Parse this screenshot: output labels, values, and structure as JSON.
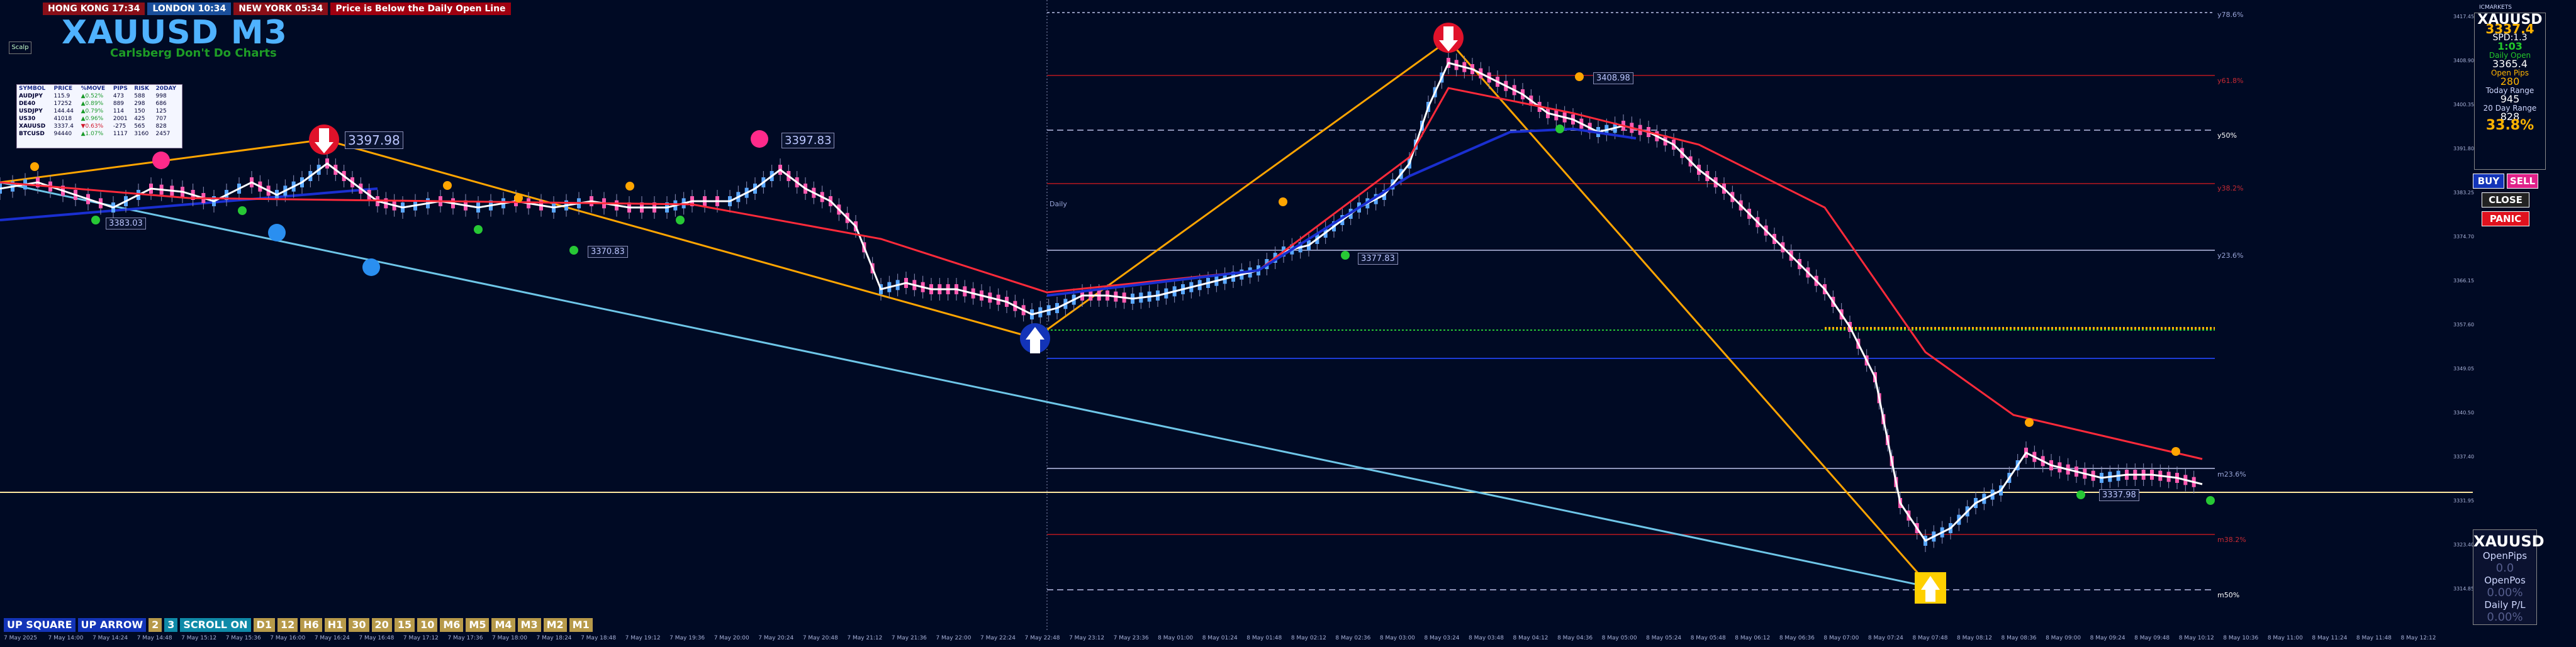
{
  "sessions": {
    "hong_kong": "HONG KONG 17:34",
    "london": "LONDON 10:34",
    "new_york": "NEW YORK 05:34",
    "warning": "Price is Below the Daily Open Line"
  },
  "header": {
    "title": "XAUUSD M3",
    "subtitle": "Carlsberg Don't Do Charts",
    "small_logo": "Scalp"
  },
  "symbol_table": {
    "columns": [
      "SYMBOL",
      "PRICE",
      "%MOVE",
      "PIPS",
      "RISK",
      "20DAY"
    ],
    "rows": [
      [
        "AUDJPY",
        "115.9",
        "▲0.52%",
        "473",
        "588",
        "998"
      ],
      [
        "DE40",
        "17252",
        "▲0.89%",
        "889",
        "298",
        "686"
      ],
      [
        "USDJPY",
        "144.44",
        "▲0.79%",
        "114",
        "150",
        "125"
      ],
      [
        "US30",
        "41018",
        "▲0.96%",
        "2001",
        "425",
        "707"
      ],
      [
        "XAUUSD",
        "3337.4",
        "▼0.63%",
        "-275",
        "565",
        "828"
      ],
      [
        "BTCUSD",
        "94440",
        "▲1.07%",
        "1117",
        "3160",
        "2457"
      ]
    ]
  },
  "price_tags": {
    "peak_left": "3397.98",
    "peak_mid": "3397.83",
    "peak_top": "3408.98",
    "low_left": "3383.03",
    "low_mid1": "3370.83",
    "low_mid2": "3377.83",
    "low_right": "3337.98"
  },
  "levels": {
    "l1": "y78.6%",
    "l2": "y61.8%",
    "l3": "y50%",
    "l4": "y38.2%",
    "l5": "y23.6%",
    "l6": "m23.6%",
    "l7": "m38.2%",
    "l8": "m50%",
    "daily": "Daily"
  },
  "right_panel": {
    "symbol": "XAUUSD",
    "price": "3337.4",
    "spread": "SPD:1.3",
    "time": "1:03",
    "label1": "Daily Open",
    "val1": "3365.4",
    "label2": "Open Pips",
    "val2": "280",
    "label3": "Today Range",
    "val3": "945",
    "label4": "20 Day Range",
    "val4": "828",
    "percent": "33.8%",
    "buy": "BUY",
    "sell": "SELL",
    "close": "CLOSE",
    "panic": "PANIC",
    "broker": "ICMARKETS"
  },
  "bottom_panel": {
    "symbol": "XAUUSD",
    "open_pips_label": "OpenPips",
    "open_pips": "0.0",
    "open_pos_label": "OpenPos",
    "open_pos": "0.00%",
    "daily_pl_label": "Daily P/L",
    "daily_pl": "0.00%"
  },
  "timeframe_bar": {
    "up_square": "UP SQUARE",
    "up_arrow": "UP ARROW",
    "n2": "2",
    "n3": "3",
    "scroll": "SCROLL ON",
    "tfs": [
      "D1",
      "12",
      "H6",
      "H1",
      "30",
      "20",
      "15",
      "10",
      "M6",
      "M5",
      "M4",
      "M3",
      "M2",
      "M1"
    ]
  },
  "x_axis": [
    "7 May 2025",
    "7 May 14:00",
    "7 May 14:24",
    "7 May 14:48",
    "7 May 15:12",
    "7 May 15:36",
    "7 May 16:00",
    "7 May 16:24",
    "7 May 16:48",
    "7 May 17:12",
    "7 May 17:36",
    "7 May 18:00",
    "7 May 18:24",
    "7 May 18:48",
    "7 May 19:12",
    "7 May 19:36",
    "7 May 20:00",
    "7 May 20:24",
    "7 May 20:48",
    "7 May 21:12",
    "7 May 21:36",
    "7 May 22:00",
    "7 May 22:24",
    "7 May 22:48",
    "7 May 23:12",
    "7 May 23:36",
    "8 May 01:00",
    "8 May 01:24",
    "8 May 01:48",
    "8 May 02:12",
    "8 May 02:36",
    "8 May 03:00",
    "8 May 03:24",
    "8 May 03:48",
    "8 May 04:12",
    "8 May 04:36",
    "8 May 05:00",
    "8 May 05:24",
    "8 May 05:48",
    "8 May 06:12",
    "8 May 06:36",
    "8 May 07:00",
    "8 May 07:24",
    "8 May 07:48",
    "8 May 08:12",
    "8 May 08:36",
    "8 May 09:00",
    "8 May 09:24",
    "8 May 09:48",
    "8 May 10:12",
    "8 May 10:36",
    "8 May 11:00",
    "8 May 11:24",
    "8 May 11:48",
    "8 May 12:12"
  ],
  "y_axis": [
    "3417.45",
    "3408.90",
    "3400.35",
    "3391.80",
    "3383.25",
    "3374.70",
    "3366.15",
    "3357.60",
    "3349.05",
    "3340.50",
    "3337.40",
    "3331.95",
    "3323.40",
    "3314.85"
  ],
  "colors": {
    "background": "#000a24",
    "ma_red": "#ff2a3a",
    "ma_blue": "#1a2fd0",
    "candle_pink": "#ff5ab0",
    "candle_blue": "#5aa8ff",
    "price_white": "#ffffff",
    "trend_orange": "#ffa500",
    "trend_cyan": "#6ec6e8",
    "level_gray": "#8d94b8",
    "level_red": "#8a1420",
    "level_green": "#27c835",
    "level_blue": "#1d3bd6",
    "daily_open_yellow": "#ffb400"
  }
}
